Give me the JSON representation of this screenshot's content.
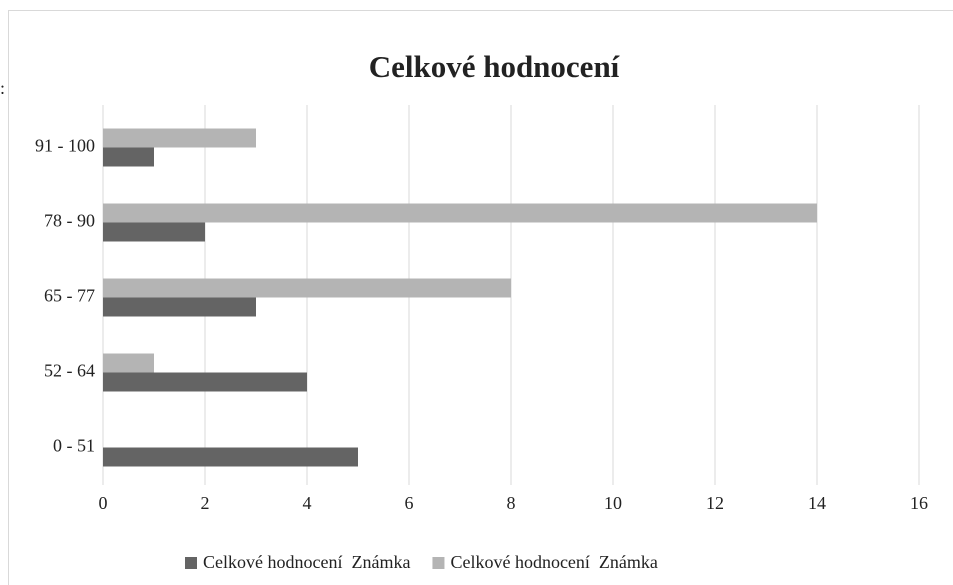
{
  "chart_data": {
    "type": "barh",
    "title": "Celkové hodnocení",
    "annotation": ":",
    "categories": [
      "0 - 51",
      "52 - 64",
      "65 - 77",
      "78 - 90",
      "91 - 100"
    ],
    "series": [
      {
        "name": "Celkové hodnocení  Známka",
        "color": "#646464",
        "values": [
          5,
          4,
          3,
          2,
          1
        ]
      },
      {
        "name": "Celkové hodnocení  Známka",
        "color": "#b4b4b4",
        "values": [
          0,
          1,
          8,
          14,
          3
        ]
      }
    ],
    "xlim": [
      0,
      16
    ],
    "xticks": [
      0,
      2,
      4,
      6,
      8,
      10,
      12,
      14,
      16
    ],
    "grid": true,
    "legend": "bottom"
  }
}
